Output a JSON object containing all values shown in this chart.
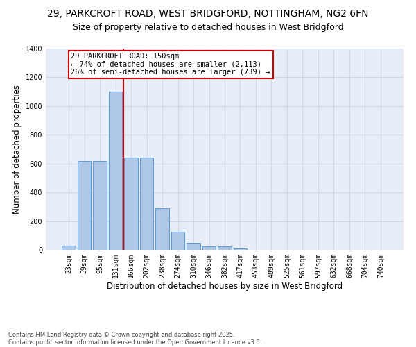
{
  "title_line1": "29, PARKCROFT ROAD, WEST BRIDGFORD, NOTTINGHAM, NG2 6FN",
  "title_line2": "Size of property relative to detached houses in West Bridgford",
  "xlabel": "Distribution of detached houses by size in West Bridgford",
  "ylabel": "Number of detached properties",
  "categories": [
    "23sqm",
    "59sqm",
    "95sqm",
    "131sqm",
    "166sqm",
    "202sqm",
    "238sqm",
    "274sqm",
    "310sqm",
    "346sqm",
    "382sqm",
    "417sqm",
    "453sqm",
    "489sqm",
    "525sqm",
    "561sqm",
    "597sqm",
    "632sqm",
    "668sqm",
    "704sqm",
    "740sqm"
  ],
  "values": [
    30,
    620,
    620,
    1100,
    640,
    640,
    290,
    125,
    50,
    25,
    25,
    10,
    0,
    0,
    0,
    0,
    0,
    0,
    0,
    0,
    0
  ],
  "bar_color": "#aec6e8",
  "bar_edge_color": "#5b9bd5",
  "bar_width": 0.85,
  "vline_color": "#cc0000",
  "vline_x": 3.52,
  "annotation_text": "29 PARKCROFT ROAD: 150sqm\n← 74% of detached houses are smaller (2,113)\n26% of semi-detached houses are larger (739) →",
  "annotation_box_color": "#cc0000",
  "ylim": [
    0,
    1400
  ],
  "yticks": [
    0,
    200,
    400,
    600,
    800,
    1000,
    1200,
    1400
  ],
  "grid_color": "#d0d8e8",
  "bg_color": "#e8eef8",
  "footnote": "Contains HM Land Registry data © Crown copyright and database right 2025.\nContains public sector information licensed under the Open Government Licence v3.0.",
  "title_fontsize": 10,
  "subtitle_fontsize": 9,
  "label_fontsize": 8.5,
  "tick_fontsize": 7,
  "annot_fontsize": 7.5,
  "footnote_fontsize": 6
}
